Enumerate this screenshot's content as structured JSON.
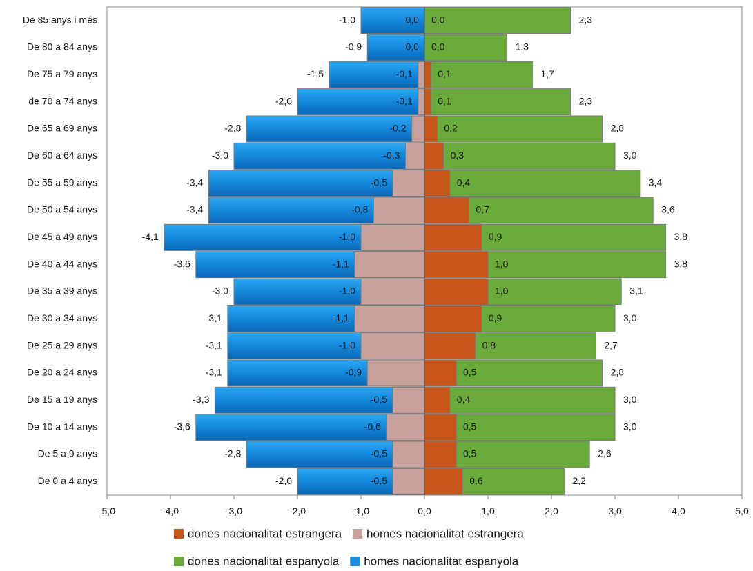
{
  "chart_data": {
    "type": "bar",
    "orientation": "horizontal",
    "stacking": "overlap",
    "xlim": [
      -5,
      5
    ],
    "ticks": [
      "-5,0",
      "-4,0",
      "-3,0",
      "-2,0",
      "-1,0",
      "0,0",
      "1,0",
      "2,0",
      "3,0",
      "4,0",
      "5,0"
    ],
    "tick_values": [
      -5,
      -4,
      -3,
      -2,
      -1,
      0,
      1,
      2,
      3,
      4,
      5
    ],
    "grid": false,
    "legend_position": "bottom",
    "categories": [
      "De 85 anys i més",
      "De 80 a 84 anys",
      "De 75 a 79 anys",
      "de 70 a 74 anys",
      "De 65 a 69 anys",
      "De 60 a 64 anys",
      "De 55 a 59 anys",
      "De 50 a 54 anys",
      "De 45 a 49 anys",
      "De 40 a 44 anys",
      "De 35 a 39 anys",
      "De 30 a 34 anys",
      "De 25 a 29 anys",
      "De 20 a 24 anys",
      "De 15 a 19 anys",
      "De 10 a 14 anys",
      "De 5 a 9 anys",
      "De 0 a 4 anys"
    ],
    "series": [
      {
        "name": "homes nacionalitat espanyola",
        "color": "#1a8fe0",
        "values": [
          -1.0,
          -0.9,
          -1.5,
          -2.0,
          -2.8,
          -3.0,
          -3.4,
          -3.4,
          -4.1,
          -3.6,
          -3.0,
          -3.1,
          -3.1,
          -3.1,
          -3.3,
          -3.6,
          -2.8,
          -2.0
        ],
        "labels": [
          "-1,0",
          "-0,9",
          "-1,5",
          "-2,0",
          "-2,8",
          "-3,0",
          "-3,4",
          "-3,4",
          "-4,1",
          "-3,6",
          "-3,0",
          "-3,1",
          "-3,1",
          "-3,1",
          "-3,3",
          "-3,6",
          "-2,8",
          "-2,0"
        ]
      },
      {
        "name": "homes nacionalitat estrangera",
        "color": "#c9a19c",
        "values": [
          0.0,
          0.0,
          -0.1,
          -0.1,
          -0.2,
          -0.3,
          -0.5,
          -0.8,
          -1.0,
          -1.1,
          -1.0,
          -1.1,
          -1.0,
          -0.9,
          -0.5,
          -0.6,
          -0.5,
          -0.5
        ],
        "labels": [
          "0,0",
          "0,0",
          "-0,1",
          "-0,1",
          "-0,2",
          "-0,3",
          "-0,5",
          "-0,8",
          "-1,0",
          "-1,1",
          "-1,0",
          "-1,1",
          "-1,0",
          "-0,9",
          "-0,5",
          "-0,6",
          "-0,5",
          "-0,5"
        ]
      },
      {
        "name": "dones nacionalitat espanyola",
        "color": "#6aaa3a",
        "values": [
          2.3,
          1.3,
          1.7,
          2.3,
          2.8,
          3.0,
          3.4,
          3.6,
          3.8,
          3.8,
          3.1,
          3.0,
          2.7,
          2.8,
          3.0,
          3.0,
          2.6,
          2.2
        ],
        "labels": [
          "2,3",
          "1,3",
          "1,7",
          "2,3",
          "2,8",
          "3,0",
          "3,4",
          "3,6",
          "3,8",
          "3,8",
          "3,1",
          "3,0",
          "2,7",
          "2,8",
          "3,0",
          "3,0",
          "2,6",
          "2,2"
        ]
      },
      {
        "name": "dones nacionalitat estrangera",
        "color": "#c8561b",
        "values": [
          0.0,
          0.0,
          0.1,
          0.1,
          0.2,
          0.3,
          0.4,
          0.7,
          0.9,
          1.0,
          1.0,
          0.9,
          0.8,
          0.5,
          0.4,
          0.5,
          0.5,
          0.6
        ],
        "labels": [
          "0,0",
          "0,0",
          "0,1",
          "0,1",
          "0,2",
          "0,3",
          "0,4",
          "0,7",
          "0,9",
          "1,0",
          "1,0",
          "0,9",
          "0,8",
          "0,5",
          "0,4",
          "0,5",
          "0,5",
          "0,6"
        ]
      }
    ],
    "legend": [
      [
        "dones nacionalitat estrangera",
        "homes nacionalitat estrangera"
      ],
      [
        "dones nacionalitat espanyola",
        "homes nacionalitat espanyola"
      ]
    ]
  }
}
